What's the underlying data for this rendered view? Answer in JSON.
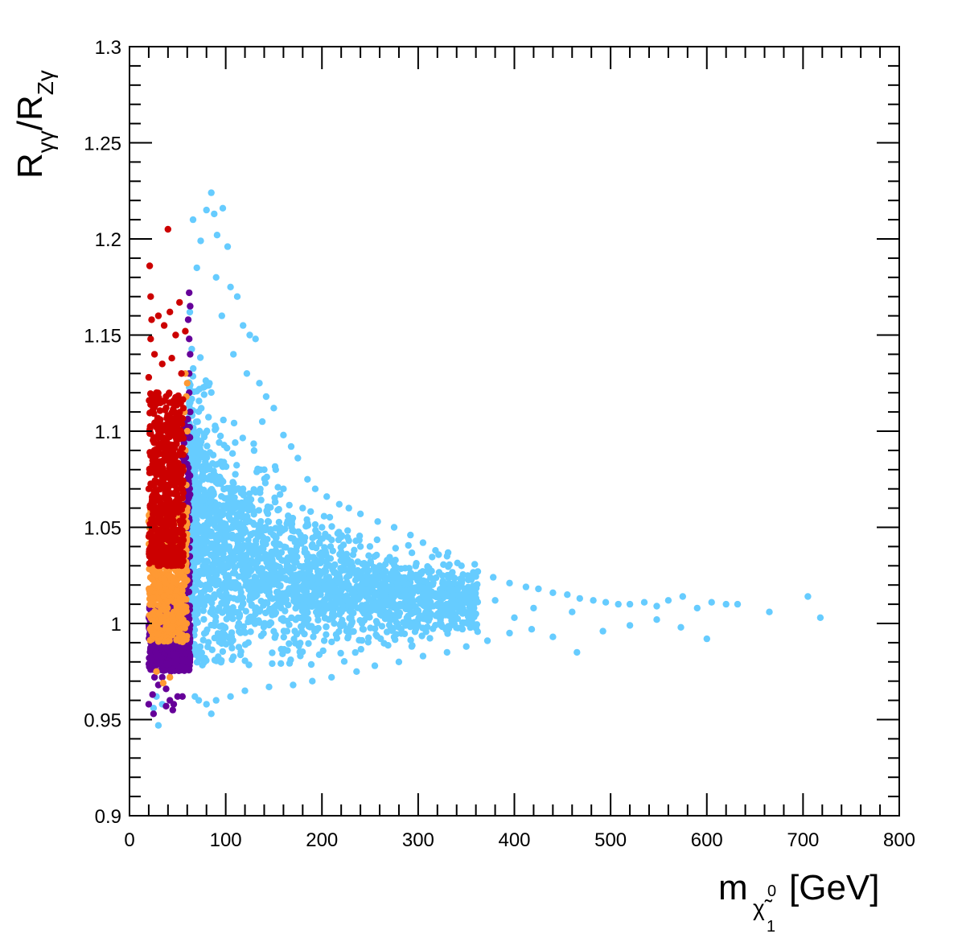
{
  "chart_data": {
    "type": "scatter",
    "title": "",
    "xlabel": {
      "main": "m",
      "subscript": "χ̃",
      "sub_superscript": "0",
      "sub_subscript": "1",
      "unit": "[GeV]"
    },
    "ylabel": {
      "r1": "R",
      "r1_sub": "γγ",
      "slash": "/",
      "r2": "R",
      "r2_sub": "Zγ"
    },
    "xlim": [
      0,
      800
    ],
    "ylim": [
      0.9,
      1.3
    ],
    "x_ticks": [
      0,
      100,
      200,
      300,
      400,
      500,
      600,
      700,
      800
    ],
    "x_tick_labels": [
      "0",
      "100",
      "200",
      "300",
      "400",
      "500",
      "600",
      "700",
      "800"
    ],
    "y_ticks": [
      0.9,
      0.95,
      1.0,
      1.05,
      1.1,
      1.15,
      1.2,
      1.25,
      1.3
    ],
    "y_tick_labels": [
      "0.9",
      "0.95",
      "1",
      "1.05",
      "1.1",
      "1.15",
      "1.2",
      "1.25",
      "1.3"
    ],
    "grid": false,
    "legend": "none",
    "series": [
      {
        "color": "#66ccff",
        "points": [
          [
            85,
            1.224
          ],
          [
            97,
            1.216
          ],
          [
            88,
            1.213
          ],
          [
            80,
            1.215
          ],
          [
            66,
            1.21
          ],
          [
            91,
            1.202
          ],
          [
            74,
            1.199
          ],
          [
            102,
            1.196
          ],
          [
            70,
            1.185
          ],
          [
            90,
            1.18
          ],
          [
            105,
            1.175
          ],
          [
            112,
            1.17
          ],
          [
            96,
            1.16
          ],
          [
            118,
            1.155
          ],
          [
            125,
            1.15
          ],
          [
            131,
            1.148
          ],
          [
            108,
            1.14
          ],
          [
            122,
            1.13
          ],
          [
            135,
            1.125
          ],
          [
            142,
            1.118
          ],
          [
            150,
            1.112
          ],
          [
            138,
            1.105
          ],
          [
            160,
            1.098
          ],
          [
            168,
            1.092
          ],
          [
            175,
            1.086
          ],
          [
            152,
            1.08
          ],
          [
            185,
            1.075
          ],
          [
            193,
            1.07
          ],
          [
            205,
            1.066
          ],
          [
            218,
            1.062
          ],
          [
            228,
            1.06
          ],
          [
            240,
            1.057
          ],
          [
            258,
            1.053
          ],
          [
            275,
            1.05
          ],
          [
            292,
            1.046
          ],
          [
            305,
            1.042
          ],
          [
            318,
            1.038
          ],
          [
            330,
            1.035
          ],
          [
            345,
            1.03
          ],
          [
            362,
            1.027
          ],
          [
            378,
            1.024
          ],
          [
            395,
            1.021
          ],
          [
            412,
            1.019
          ],
          [
            425,
            1.018
          ],
          [
            440,
            1.016
          ],
          [
            455,
            1.015
          ],
          [
            468,
            1.013
          ],
          [
            482,
            1.012
          ],
          [
            495,
            1.011
          ],
          [
            508,
            1.01
          ],
          [
            520,
            1.01
          ],
          [
            535,
            1.011
          ],
          [
            548,
            1.009
          ],
          [
            560,
            1.012
          ],
          [
            575,
            1.014
          ],
          [
            590,
            1.008
          ],
          [
            605,
            1.011
          ],
          [
            620,
            1.01
          ],
          [
            632,
            1.01
          ],
          [
            665,
            1.006
          ],
          [
            705,
            1.014
          ],
          [
            718,
            1.003
          ],
          [
            600,
            0.992
          ],
          [
            573,
            0.998
          ],
          [
            548,
            1.002
          ],
          [
            520,
            0.999
          ],
          [
            492,
            0.996
          ],
          [
            465,
            0.985
          ],
          [
            440,
            0.993
          ],
          [
            418,
            0.997
          ],
          [
            395,
            0.995
          ],
          [
            372,
            0.991
          ],
          [
            350,
            0.988
          ],
          [
            330,
            0.985
          ],
          [
            305,
            0.983
          ],
          [
            280,
            0.98
          ],
          [
            255,
            0.978
          ],
          [
            236,
            0.975
          ],
          [
            210,
            0.972
          ],
          [
            190,
            0.97
          ],
          [
            170,
            0.968
          ],
          [
            145,
            0.967
          ],
          [
            120,
            0.965
          ],
          [
            105,
            0.962
          ],
          [
            90,
            0.96
          ],
          [
            80,
            0.958
          ],
          [
            72,
            0.96
          ],
          [
            68,
            0.962
          ],
          [
            85,
            0.953
          ],
          [
            30,
            0.947
          ],
          [
            34,
            0.958
          ],
          [
            25,
            0.956
          ],
          [
            28,
            0.962
          ],
          [
            260,
            1.03
          ],
          [
            300,
            1.025
          ],
          [
            340,
            1.018
          ],
          [
            380,
            1.012
          ],
          [
            420,
            1.008
          ],
          [
            460,
            1.006
          ],
          [
            280,
            1.015
          ],
          [
            320,
            1.01
          ],
          [
            360,
            1.005
          ],
          [
            400,
            1.003
          ],
          [
            240,
            1.04
          ],
          [
            220,
            1.045
          ],
          [
            200,
            1.05
          ],
          [
            180,
            1.06
          ],
          [
            160,
            1.07
          ],
          [
            140,
            1.08
          ]
        ],
        "dense_region": {
          "x_range": [
            60,
            360
          ],
          "y_center": 1.02,
          "count": 2400
        }
      },
      {
        "color": "#660099",
        "points": [
          [
            62,
            1.172
          ],
          [
            63,
            1.165
          ],
          [
            61,
            1.158
          ],
          [
            62,
            1.148
          ],
          [
            63,
            1.14
          ],
          [
            62,
            1.13
          ],
          [
            62,
            1.12
          ],
          [
            63,
            1.11
          ],
          [
            22,
            0.978
          ],
          [
            26,
            0.972
          ],
          [
            30,
            0.968
          ],
          [
            34,
            0.972
          ],
          [
            38,
            0.966
          ],
          [
            42,
            0.96
          ],
          [
            46,
            0.958
          ],
          [
            50,
            0.962
          ],
          [
            24,
            0.963
          ],
          [
            20,
            0.958
          ],
          [
            25,
            0.953
          ],
          [
            38,
            0.957
          ],
          [
            45,
            0.955
          ],
          [
            55,
            0.962
          ]
        ],
        "dense_region": {
          "x_range": [
            18,
            63
          ],
          "y_range": [
            0.975,
            1.01
          ],
          "count": 550,
          "strip_x_range": [
            54,
            63
          ],
          "strip_y_range": [
            0.98,
            1.11
          ]
        }
      },
      {
        "color": "#ff9933",
        "points": [
          [
            58,
            1.13
          ],
          [
            60,
            1.125
          ],
          [
            59,
            1.118
          ],
          [
            57,
            1.11
          ],
          [
            60,
            1.1
          ],
          [
            58,
            1.09
          ],
          [
            56,
            1.08
          ],
          [
            59,
            1.072
          ],
          [
            55,
            1.065
          ],
          [
            60,
            1.06
          ],
          [
            28,
            0.975
          ],
          [
            35,
            0.969
          ],
          [
            42,
            0.972
          ]
        ],
        "dense_region": {
          "x_range": [
            18,
            60
          ],
          "y_range": [
            0.99,
            1.06
          ],
          "count": 600
        }
      },
      {
        "color": "#cc0000",
        "points": [
          [
            40,
            1.205
          ],
          [
            21,
            1.186
          ],
          [
            22,
            1.17
          ],
          [
            23,
            1.158
          ],
          [
            22,
            1.148
          ],
          [
            30,
            1.16
          ],
          [
            42,
            1.162
          ],
          [
            52,
            1.167
          ],
          [
            36,
            1.155
          ],
          [
            48,
            1.15
          ],
          [
            58,
            1.152
          ],
          [
            26,
            1.14
          ],
          [
            34,
            1.135
          ],
          [
            44,
            1.138
          ],
          [
            54,
            1.13
          ],
          [
            20,
            1.128
          ],
          [
            28,
            1.12
          ],
          [
            38,
            1.118
          ],
          [
            46,
            1.116
          ],
          [
            56,
            1.112
          ],
          [
            24,
            1.11
          ],
          [
            32,
            1.106
          ],
          [
            42,
            1.104
          ],
          [
            50,
            1.1
          ]
        ],
        "dense_region": {
          "x_range": [
            18,
            56
          ],
          "y_range": [
            1.03,
            1.12
          ],
          "count": 650
        }
      }
    ]
  }
}
